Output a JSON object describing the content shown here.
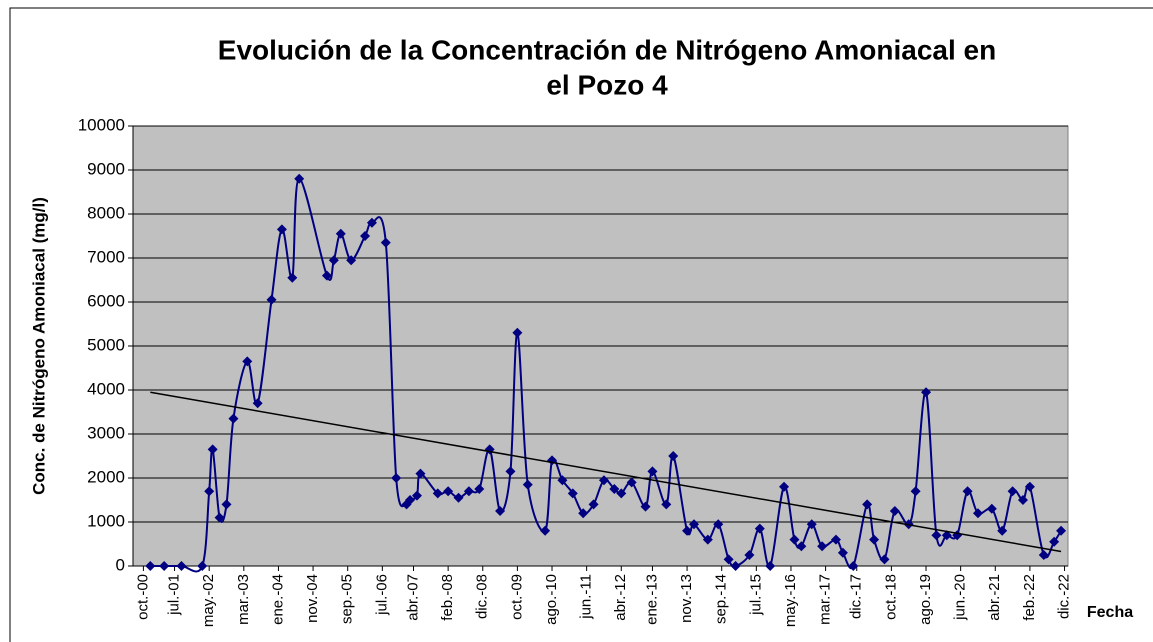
{
  "chart_data": {
    "type": "line",
    "title": [
      "Evolución de la Concentración de Nitrógeno Amoniacal en",
      "el Pozo 4"
    ],
    "y_label": "Conc. de Nitrógeno Amoniacal (mg/l)",
    "x_label": "Fecha",
    "xlim": [
      "2000-07",
      "2023-01"
    ],
    "xticks": [
      {
        "value": "2000-10",
        "label": "oct.-00"
      },
      {
        "value": "2001-07",
        "label": "jul.-01"
      },
      {
        "value": "2002-05",
        "label": "may.-02"
      },
      {
        "value": "2003-03",
        "label": "mar.-03"
      },
      {
        "value": "2004-01",
        "label": "ene.-04"
      },
      {
        "value": "2004-11",
        "label": "nov.-04"
      },
      {
        "value": "2005-09",
        "label": "sep.-05"
      },
      {
        "value": "2006-07",
        "label": "jul.-06"
      },
      {
        "value": "2007-04",
        "label": "abr.-07"
      },
      {
        "value": "2008-02",
        "label": "feb.-08"
      },
      {
        "value": "2008-12",
        "label": "dic.-08"
      },
      {
        "value": "2009-10",
        "label": "oct.-09"
      },
      {
        "value": "2010-08",
        "label": "ago.-10"
      },
      {
        "value": "2011-06",
        "label": "jun.-11"
      },
      {
        "value": "2012-04",
        "label": "abr.-12"
      },
      {
        "value": "2013-01",
        "label": "ene.-13"
      },
      {
        "value": "2013-11",
        "label": "nov.-13"
      },
      {
        "value": "2014-09",
        "label": "sep.-14"
      },
      {
        "value": "2015-07",
        "label": "jul.-15"
      },
      {
        "value": "2016-05",
        "label": "may.-16"
      },
      {
        "value": "2017-03",
        "label": "mar.-17"
      },
      {
        "value": "2017-12",
        "label": "dic.-17"
      },
      {
        "value": "2018-10",
        "label": "oct.-18"
      },
      {
        "value": "2019-08",
        "label": "ago.-19"
      },
      {
        "value": "2020-06",
        "label": "jun.-20"
      },
      {
        "value": "2021-04",
        "label": "abr.-21"
      },
      {
        "value": "2022-02",
        "label": "feb.-22"
      },
      {
        "value": "2022-12",
        "label": "dic.-22"
      }
    ],
    "ylim": [
      0,
      10000
    ],
    "yticks": [
      0,
      1000,
      2000,
      3000,
      4000,
      5000,
      6000,
      7000,
      8000,
      9000,
      10000
    ],
    "grid": true,
    "smooth": true,
    "x": [
      "2000-12",
      "2001-04",
      "2001-09",
      "2002-03",
      "2002-05",
      "2002-06",
      "2002-08",
      "2002-10",
      "2002-12",
      "2003-04",
      "2003-07",
      "2003-11",
      "2004-02",
      "2004-05",
      "2004-07",
      "2005-03",
      "2005-05",
      "2005-07",
      "2005-10",
      "2006-02",
      "2006-04",
      "2006-08",
      "2006-11",
      "2007-02",
      "2007-03",
      "2007-05",
      "2007-06",
      "2007-11",
      "2008-02",
      "2008-05",
      "2008-08",
      "2008-11",
      "2009-02",
      "2009-05",
      "2009-08",
      "2009-10",
      "2010-01",
      "2010-06",
      "2010-08",
      "2010-11",
      "2011-02",
      "2011-05",
      "2011-08",
      "2011-11",
      "2012-02",
      "2012-04",
      "2012-07",
      "2012-11",
      "2013-01",
      "2013-05",
      "2013-07",
      "2013-11",
      "2014-01",
      "2014-05",
      "2014-08",
      "2014-11",
      "2015-01",
      "2015-05",
      "2015-08",
      "2015-11",
      "2016-03",
      "2016-06",
      "2016-08",
      "2016-11",
      "2017-02",
      "2017-06",
      "2017-08",
      "2017-11",
      "2018-03",
      "2018-05",
      "2018-08",
      "2018-11",
      "2019-03",
      "2019-05",
      "2019-08",
      "2019-11",
      "2020-02",
      "2020-05",
      "2020-08",
      "2020-11",
      "2021-03",
      "2021-06",
      "2021-09",
      "2021-12",
      "2022-02",
      "2022-06",
      "2022-09",
      "2022-11"
    ],
    "series": [
      {
        "color": "#000080",
        "values": [
          0,
          0,
          0,
          0,
          1700,
          2650,
          1100,
          1400,
          3350,
          4650,
          3700,
          6050,
          7650,
          6550,
          8800,
          6600,
          6950,
          7550,
          6950,
          7500,
          7800,
          7350,
          2000,
          1400,
          1500,
          1600,
          2100,
          1650,
          1700,
          1550,
          1700,
          1750,
          2650,
          1250,
          2150,
          5300,
          1850,
          800,
          2400,
          1950,
          1650,
          1200,
          1400,
          1950,
          1750,
          1650,
          1900,
          1350,
          2150,
          1400,
          2500,
          800,
          950,
          600,
          950,
          150,
          0,
          250,
          850,
          0,
          1800,
          600,
          450,
          950,
          450,
          600,
          300,
          0,
          1400,
          600,
          150,
          1250,
          950,
          1700,
          3950,
          700,
          700,
          700,
          1700,
          1200,
          1300,
          800,
          1700,
          1500,
          1800,
          250,
          550,
          800
        ]
      }
    ],
    "trendline": {
      "color": "#000000",
      "x": [
        "2000-12",
        "2022-11"
      ],
      "values": [
        3950,
        330
      ]
    }
  }
}
